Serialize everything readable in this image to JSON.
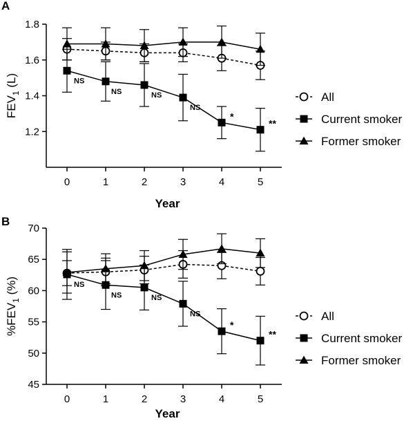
{
  "chart_data": [
    {
      "panel": "A",
      "type": "line",
      "x": [
        0,
        1,
        2,
        3,
        4,
        5
      ],
      "xticks": [
        "0",
        "1",
        "2",
        "3",
        "4",
        "5"
      ],
      "xlabel": "Year",
      "ylabel": "FEV",
      "ylabel_sub": "1",
      "ylabel_unit": " (L)",
      "ylim": [
        1.0,
        1.8
      ],
      "yticks": [
        1.2,
        1.4,
        1.6,
        1.8
      ],
      "ytick_labels": [
        "1.2",
        "1.4",
        "1.6",
        "1.8"
      ],
      "grid": false,
      "legend_position": "right",
      "series": [
        {
          "name": "All",
          "marker": "open-circle",
          "line": "dashed",
          "values": [
            1.66,
            1.65,
            1.64,
            1.64,
            1.61,
            1.57
          ],
          "err": [
            0.06,
            0.05,
            0.05,
            0.05,
            0.07,
            0.08
          ]
        },
        {
          "name": "Current smoker",
          "marker": "filled-square",
          "line": "solid",
          "values": [
            1.54,
            1.48,
            1.46,
            1.39,
            1.25,
            1.21
          ],
          "err": [
            0.12,
            0.11,
            0.12,
            0.13,
            0.09,
            0.12
          ]
        },
        {
          "name": "Former smoker",
          "marker": "filled-triangle",
          "line": "solid",
          "values": [
            1.69,
            1.69,
            1.68,
            1.7,
            1.7,
            1.66
          ],
          "err": [
            0.09,
            0.09,
            0.09,
            0.08,
            0.09,
            0.09
          ]
        }
      ],
      "annotations": [
        {
          "x": 0,
          "text": "NS"
        },
        {
          "x": 1,
          "text": "NS"
        },
        {
          "x": 2,
          "text": "NS"
        },
        {
          "x": 3,
          "text": "NS"
        },
        {
          "x": 4,
          "text": "*"
        },
        {
          "x": 5,
          "text": "**"
        }
      ]
    },
    {
      "panel": "B",
      "type": "line",
      "x": [
        0,
        1,
        2,
        3,
        4,
        5
      ],
      "xticks": [
        "0",
        "1",
        "2",
        "3",
        "4",
        "5"
      ],
      "xlabel": "Year",
      "ylabel": "%FEV",
      "ylabel_sub": "1",
      "ylabel_unit": " (%)",
      "ylim": [
        45,
        70
      ],
      "yticks": [
        45,
        50,
        55,
        60,
        65,
        70
      ],
      "ytick_labels": [
        "45",
        "50",
        "55",
        "60",
        "65",
        "70"
      ],
      "grid": false,
      "legend_position": "right",
      "series": [
        {
          "name": "All",
          "marker": "open-circle",
          "line": "dashed",
          "values": [
            62.8,
            63.0,
            63.3,
            64.2,
            64.0,
            63.1
          ],
          "err": [
            2.0,
            2.2,
            2.2,
            2.2,
            2.1,
            2.2
          ]
        },
        {
          "name": "Current smoker",
          "marker": "filled-square",
          "line": "solid",
          "values": [
            62.6,
            60.9,
            60.5,
            57.9,
            53.5,
            52.0
          ],
          "err": [
            4.0,
            3.9,
            3.6,
            3.6,
            3.6,
            3.9
          ]
        },
        {
          "name": "Former smoker",
          "marker": "filled-triangle",
          "line": "solid",
          "values": [
            62.9,
            63.5,
            64.0,
            65.8,
            66.7,
            66.0
          ],
          "err": [
            3.3,
            2.4,
            2.4,
            2.4,
            2.4,
            2.3
          ]
        }
      ],
      "annotations": [
        {
          "x": 0,
          "text": "NS"
        },
        {
          "x": 1,
          "text": "NS"
        },
        {
          "x": 2,
          "text": "NS"
        },
        {
          "x": 3,
          "text": "NS"
        },
        {
          "x": 4,
          "text": "*"
        },
        {
          "x": 5,
          "text": "**"
        }
      ]
    }
  ]
}
